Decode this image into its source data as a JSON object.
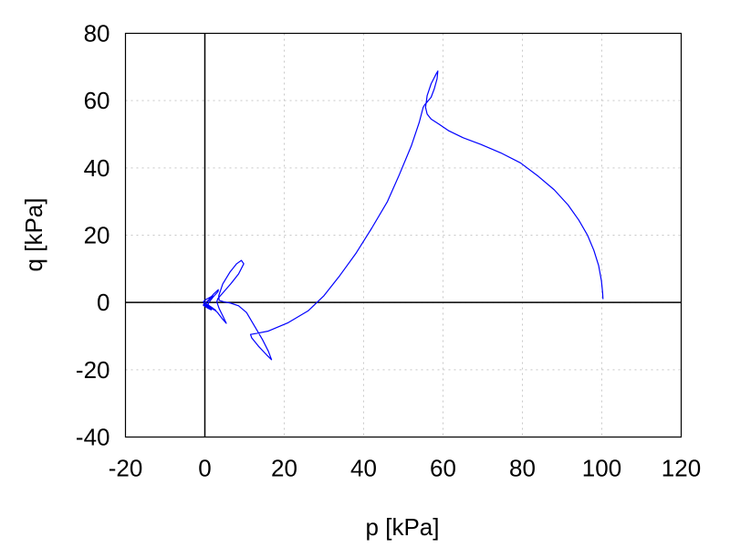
{
  "chart_data": {
    "type": "line",
    "xlabel": "p [kPa]",
    "ylabel": "q [kPa]",
    "xlim": [
      -20,
      120
    ],
    "ylim": [
      -40,
      80
    ],
    "xticks": [
      -20,
      0,
      20,
      40,
      60,
      80,
      100,
      120
    ],
    "yticks": [
      -40,
      -20,
      0,
      20,
      40,
      60,
      80
    ],
    "grid": true,
    "zero_lines": true,
    "series": [
      {
        "color": "#0000ff",
        "x": [
          100.3,
          100.2,
          99.9,
          99.2,
          98.0,
          96.4,
          94.2,
          91.5,
          88.0,
          84.0,
          79.5,
          74.5,
          69.5,
          65.0,
          61.5,
          59.0,
          57.0,
          56.0,
          55.6,
          56.0,
          57.0,
          58.3,
          58.7,
          58.5,
          57.8,
          57.0,
          56.3,
          55.8,
          55.4,
          55.0,
          54.0,
          52.0,
          49.0,
          46.0,
          42.0,
          38.0,
          34.0,
          30.0,
          26.0,
          21.0,
          16.0,
          13.0,
          11.5,
          11.8,
          13.5,
          15.5,
          16.8,
          16.0,
          14.5,
          12.5,
          10.5,
          8.5,
          6.5,
          4.8,
          3.6,
          3.5,
          4.5,
          6.3,
          8.0,
          9.2,
          9.8,
          8.5,
          6.5,
          4.5,
          3.3,
          3.0,
          3.6,
          4.6,
          5.4,
          4.5,
          3.2,
          1.8,
          0.8,
          0.9,
          2.0,
          3.3,
          3.4,
          2.2,
          0.8,
          0.2,
          0.4,
          1.6,
          2.8,
          1.8,
          0.4,
          -0.4,
          0.3,
          1.4,
          2.0,
          1.0,
          -0.2,
          -0.4,
          0.6,
          1.6,
          1.2,
          0.0,
          -0.3
        ],
        "y": [
          1.0,
          3.0,
          6.5,
          11.0,
          15.5,
          20.0,
          24.5,
          29.0,
          33.5,
          37.5,
          41.5,
          44.5,
          47.0,
          49.0,
          51.0,
          53.0,
          54.5,
          56.0,
          58.0,
          61.5,
          65.0,
          68.0,
          68.8,
          66.5,
          63.5,
          61.0,
          60.0,
          59.3,
          58.8,
          58.0,
          53.5,
          46.5,
          38.0,
          30.0,
          22.0,
          14.5,
          8.0,
          2.0,
          -2.5,
          -6.0,
          -8.5,
          -9.2,
          -9.5,
          -10.5,
          -13.0,
          -15.5,
          -17.0,
          -14.5,
          -11.0,
          -7.0,
          -3.0,
          -1.0,
          -0.2,
          0.2,
          0.6,
          2.0,
          5.5,
          9.0,
          11.5,
          12.5,
          11.5,
          8.5,
          5.5,
          2.8,
          1.2,
          0.2,
          -1.8,
          -4.2,
          -6.2,
          -5.0,
          -3.0,
          -1.6,
          -1.0,
          -0.2,
          1.5,
          3.2,
          3.8,
          2.5,
          0.6,
          -0.1,
          -0.8,
          -1.8,
          -2.4,
          -1.5,
          -0.4,
          0.2,
          0.9,
          1.6,
          2.0,
          0.6,
          -0.3,
          -0.8,
          -1.6,
          -2.2,
          -1.8,
          -0.7,
          -0.3
        ]
      }
    ]
  }
}
